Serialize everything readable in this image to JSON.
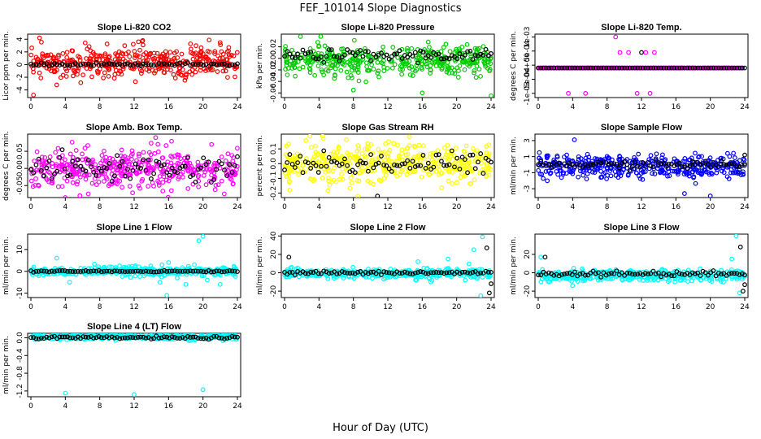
{
  "figure": {
    "title": "FEF_101014  Slope Diagnostics",
    "xlabel": "Hour of Day (UTC)"
  },
  "chart_data": [
    {
      "type": "scatter",
      "title": "Slope Li-820 CO2",
      "xlabel": "",
      "ylabel": "Licor ppm per min.",
      "xlim": [
        0,
        24
      ],
      "ylim": [
        -5.2,
        4.8
      ],
      "xticks": [
        "0",
        "4",
        "8",
        "12",
        "16",
        "20",
        "24"
      ],
      "yticks": [
        "-4",
        "-2",
        "0",
        "2",
        "4"
      ],
      "series": [
        {
          "color": "#ff0000",
          "center": 0.3,
          "spread": 1.2,
          "outliers": [
            [
              1,
              4.2
            ],
            [
              0.3,
              -4.8
            ],
            [
              3,
              -3.2
            ],
            [
              12.5,
              3.6
            ],
            [
              13,
              3.8
            ],
            [
              23,
              2.7
            ]
          ]
        },
        {
          "color": "#000000",
          "center": 0.0,
          "spread": 0.12,
          "outliers": []
        }
      ]
    },
    {
      "type": "scatter",
      "title": "Slope Li-820 Pressure",
      "xlabel": "",
      "ylabel": "kPa per min.",
      "xlim": [
        0,
        24
      ],
      "ylim": [
        -0.068,
        0.042
      ],
      "xticks": [
        "0",
        "4",
        "8",
        "12",
        "16",
        "20",
        "24"
      ],
      "yticks": [
        "-0.06",
        "-0.04",
        "-0.02",
        "0.00",
        "0.02"
      ],
      "series": [
        {
          "color": "#00cc00",
          "center": -0.003,
          "spread": 0.012,
          "outliers": [
            [
              4.2,
              0.038
            ],
            [
              8,
              -0.055
            ],
            [
              16,
              -0.06
            ],
            [
              24,
              -0.065
            ]
          ]
        },
        {
          "color": "#000000",
          "center": 0.005,
          "spread": 0.005,
          "outliers": []
        }
      ]
    },
    {
      "type": "scatter",
      "title": "Slope Li-820 Temp.",
      "xlabel": "",
      "ylabel": "degrees C per min.",
      "xlim": [
        0,
        24
      ],
      "ylim": [
        -0.00115,
        0.0011
      ],
      "xticks": [
        "0",
        "4",
        "8",
        "12",
        "16",
        "20",
        "24"
      ],
      "yticks": [
        "-1e-03",
        "-5e-04",
        "0e+00",
        "5e-04",
        "1e-03"
      ],
      "yticks_values": [
        -0.001,
        -0.0005,
        0,
        0.0005,
        0.001
      ],
      "series": [
        {
          "color": "#ff00ff",
          "center": -0.0001,
          "spread": 0,
          "outliers": [
            [
              9,
              0.001
            ],
            [
              3.5,
              -0.001
            ],
            [
              5.5,
              -0.001
            ],
            [
              9.5,
              0.00045
            ],
            [
              10.5,
              0.00045
            ],
            [
              11.5,
              -0.001
            ],
            [
              12.5,
              0.00045
            ],
            [
              13,
              -0.001
            ],
            [
              13.5,
              0.00045
            ]
          ]
        },
        {
          "color": "#000000",
          "center": -0.0001,
          "spread": 0,
          "outliers": [
            [
              12,
              0.00045
            ]
          ]
        }
      ]
    },
    {
      "type": "scatter",
      "title": "Slope Amb. Box Temp.",
      "xlabel": "",
      "ylabel": "degrees C per min.",
      "xlim": [
        0,
        24
      ],
      "ylim": [
        -0.085,
        0.1
      ],
      "xticks": [
        "0",
        "4",
        "8",
        "12",
        "16",
        "20",
        "24"
      ],
      "yticks": [
        "-0.05",
        "0.00",
        "0.05"
      ],
      "series": [
        {
          "color": "#ff00ff",
          "center": 0.0,
          "spread": 0.028,
          "outliers": [
            [
              4,
              -0.085
            ],
            [
              14.5,
              0.09
            ],
            [
              21,
              0.07
            ]
          ]
        },
        {
          "color": "#000000",
          "center": 0.0,
          "spread": 0.02,
          "outliers": []
        }
      ]
    },
    {
      "type": "scatter",
      "title": "Slope Gas Stream RH",
      "xlabel": "",
      "ylabel": "percent per min.",
      "xlim": [
        0,
        24
      ],
      "ylim": [
        -0.23,
        0.2
      ],
      "xticks": [
        "0",
        "4",
        "8",
        "12",
        "16",
        "20",
        "24"
      ],
      "yticks": [
        "-0.2",
        "-0.1",
        "0.0",
        "0.1"
      ],
      "series": [
        {
          "color": "#ffff00",
          "center": 0.0,
          "spread": 0.065,
          "outliers": [
            [
              4.5,
              0.17
            ],
            [
              0.6,
              -0.18
            ]
          ]
        },
        {
          "color": "#000000",
          "center": 0.0,
          "spread": 0.04,
          "outliers": [
            [
              10.8,
              -0.22
            ]
          ]
        }
      ]
    },
    {
      "type": "scatter",
      "title": "Slope Sample Flow",
      "xlabel": "",
      "ylabel": "ml/min per min.",
      "xlim": [
        0,
        24
      ],
      "ylim": [
        -4.1,
        3.8
      ],
      "xticks": [
        "0",
        "4",
        "8",
        "12",
        "16",
        "20",
        "24"
      ],
      "yticks": [
        "-3",
        "-1",
        "1",
        "3"
      ],
      "series": [
        {
          "color": "#0000ff",
          "center": -0.2,
          "spread": 0.7,
          "outliers": [
            [
              4.2,
              3.1
            ],
            [
              17,
              -3.6
            ],
            [
              20,
              -3.9
            ],
            [
              22,
              1.4
            ]
          ]
        },
        {
          "color": "#000000",
          "center": 0.0,
          "spread": 0.25,
          "outliers": [
            [
              24,
              1.2
            ]
          ]
        }
      ]
    },
    {
      "type": "scatter",
      "title": "Slope Line 1 Flow",
      "xlabel": "",
      "ylabel": "ml/min per min.",
      "xlim": [
        0,
        24
      ],
      "ylim": [
        -12,
        17
      ],
      "xticks": [
        "0",
        "4",
        "8",
        "12",
        "16",
        "20",
        "24"
      ],
      "yticks": [
        "-10",
        "0",
        "10"
      ],
      "series": [
        {
          "color": "#00ffff",
          "center": 0.0,
          "spread": 1.0,
          "outliers": [
            [
              3,
              6
            ],
            [
              4.5,
              -5
            ],
            [
              15,
              -5
            ],
            [
              16,
              4
            ],
            [
              17,
              -3
            ],
            [
              18,
              -6
            ],
            [
              19,
              3
            ],
            [
              19.5,
              14
            ],
            [
              20,
              16
            ],
            [
              20.5,
              -4
            ],
            [
              22,
              -6
            ],
            [
              15.8,
              -11
            ]
          ]
        },
        {
          "color": "#000000",
          "center": 0.0,
          "spread": 0.15,
          "outliers": []
        }
      ]
    },
    {
      "type": "scatter",
      "title": "Slope Line 2 Flow",
      "xlabel": "",
      "ylabel": "ml/min per min.",
      "xlim": [
        0,
        24
      ],
      "ylim": [
        -27,
        42
      ],
      "xticks": [
        "0",
        "4",
        "8",
        "12",
        "16",
        "20",
        "24"
      ],
      "yticks": [
        "-20",
        "0",
        "20",
        "40"
      ],
      "series": [
        {
          "color": "#00ffff",
          "center": -1.0,
          "spread": 2.5,
          "outliers": [
            [
              15.5,
              12
            ],
            [
              17,
              -10
            ],
            [
              19,
              15
            ],
            [
              21,
              -8
            ],
            [
              22,
              25
            ],
            [
              23,
              39
            ],
            [
              22.8,
              -25
            ]
          ]
        },
        {
          "color": "#000000",
          "center": 0.0,
          "spread": 1.0,
          "outliers": [
            [
              0.5,
              17
            ],
            [
              23.5,
              27
            ],
            [
              23.8,
              -22
            ],
            [
              24,
              -12
            ]
          ]
        }
      ]
    },
    {
      "type": "scatter",
      "title": "Slope Line 3 Flow",
      "xlabel": "",
      "ylabel": "ml/min per min.",
      "xlim": [
        0,
        24
      ],
      "ylim": [
        -27,
        42
      ],
      "xticks": [
        "0",
        "4",
        "8",
        "12",
        "16",
        "20",
        "24"
      ],
      "yticks": [
        "-20",
        "0",
        "20"
      ],
      "series": [
        {
          "color": "#00ffff",
          "center": -3.0,
          "spread": 3.0,
          "outliers": [
            [
              0.3,
              17
            ],
            [
              4,
              -14
            ],
            [
              22.5,
              15
            ],
            [
              23,
              40
            ],
            [
              23.4,
              -22
            ]
          ]
        },
        {
          "color": "#000000",
          "center": -1.0,
          "spread": 1.5,
          "outliers": [
            [
              0.8,
              17
            ],
            [
              23.5,
              28
            ],
            [
              23.8,
              -20
            ],
            [
              24,
              -13
            ]
          ]
        }
      ]
    },
    {
      "type": "scatter",
      "title": "Slope Line 4 (LT) Flow",
      "xlabel": "",
      "ylabel": "ml/min per min.",
      "xlim": [
        0,
        24
      ],
      "ylim": [
        -1.33,
        0.1
      ],
      "xticks": [
        "0",
        "4",
        "8",
        "12",
        "16",
        "20",
        "24"
      ],
      "yticks": [
        "-1.2",
        "-0.8",
        "-0.4",
        "0.0"
      ],
      "series": [
        {
          "color": "#00ffff",
          "center": 0.02,
          "spread": 0.03,
          "outliers": [
            [
              4,
              -1.25
            ],
            [
              12,
              -1.28
            ],
            [
              20,
              -1.17
            ]
          ]
        },
        {
          "color": "#000000",
          "center": 0.0,
          "spread": 0.015,
          "outliers": []
        }
      ]
    }
  ]
}
